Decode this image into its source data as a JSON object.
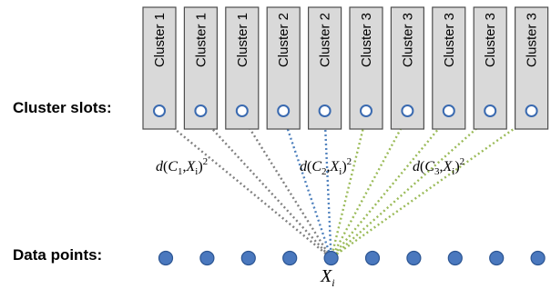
{
  "labels": {
    "cluster_slots": "Cluster slots:",
    "data_points": "Data points:"
  },
  "slots": [
    {
      "label": "Cluster 1",
      "cluster": 1
    },
    {
      "label": "Cluster 1",
      "cluster": 1
    },
    {
      "label": "Cluster 1",
      "cluster": 1
    },
    {
      "label": "Cluster 2",
      "cluster": 2
    },
    {
      "label": "Cluster 2",
      "cluster": 2
    },
    {
      "label": "Cluster 3",
      "cluster": 3
    },
    {
      "label": "Cluster 3",
      "cluster": 3
    },
    {
      "label": "Cluster 3",
      "cluster": 3
    },
    {
      "label": "Cluster 3",
      "cluster": 3
    },
    {
      "label": "Cluster 3",
      "cluster": 3
    }
  ],
  "distance_labels": [
    {
      "d": "d",
      "c": "C",
      "c_sub": "1",
      "x": "X",
      "x_sub": "i",
      "exp": "2"
    },
    {
      "d": "d",
      "c": "C",
      "c_sub": "2",
      "x": "X",
      "x_sub": "i",
      "exp": "2"
    },
    {
      "d": "d",
      "c": "C",
      "c_sub": "3",
      "x": "X",
      "x_sub": "i",
      "exp": "2"
    }
  ],
  "data_point_count": 10,
  "highlighted_point_index": 4,
  "highlighted_point_label": {
    "base": "X",
    "sub": "i"
  },
  "line_colors": [
    "#808080",
    "#4f81bd",
    "#9bbb59"
  ]
}
